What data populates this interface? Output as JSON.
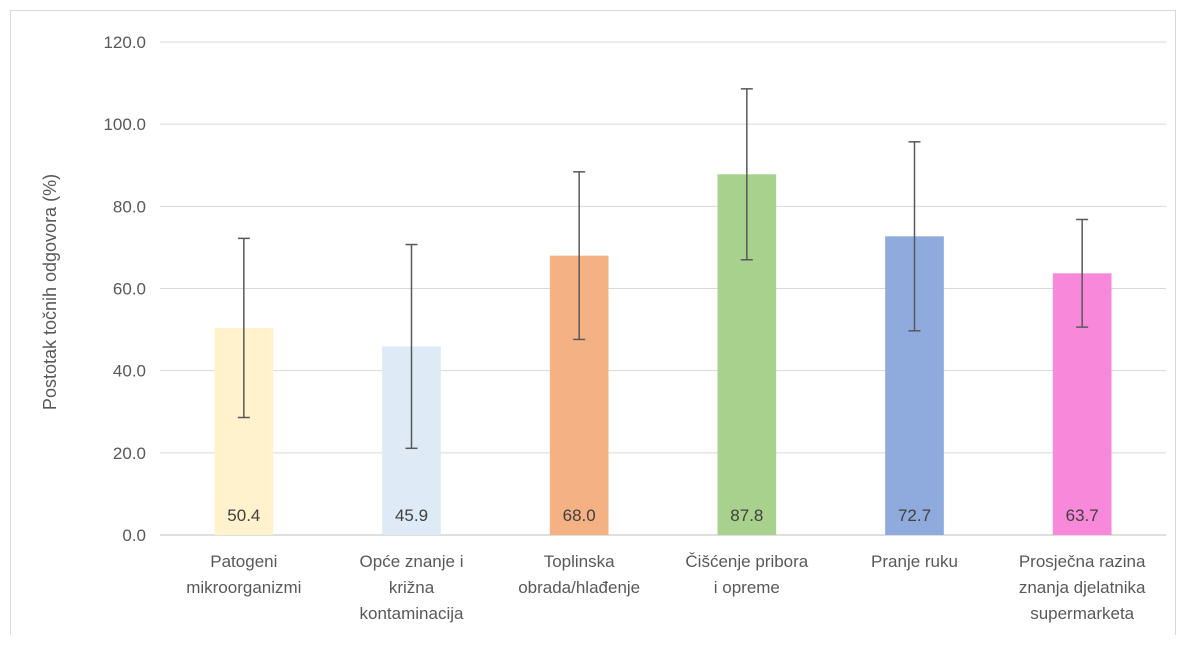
{
  "chart_data": {
    "type": "bar",
    "title": "",
    "xlabel": "",
    "ylabel": "Postotak točnih odgovora (%)",
    "ylim": [
      0,
      120
    ],
    "yticks": [
      "0.0",
      "20.0",
      "40.0",
      "60.0",
      "80.0",
      "100.0",
      "120.0"
    ],
    "grid": true,
    "categories": [
      [
        "Patogeni",
        "mikroorganizmi"
      ],
      [
        "Opće znanje i",
        "križna",
        "kontaminacija"
      ],
      [
        "Toplinska",
        "obrada/hlađenje"
      ],
      [
        "Čišćenje pribora",
        "i opreme"
      ],
      [
        "Pranje ruku"
      ],
      [
        "Prosječna razina",
        "znanja djelatnika",
        "supermarketa"
      ]
    ],
    "values": [
      50.4,
      45.9,
      68.0,
      87.8,
      72.7,
      63.7
    ],
    "data_labels": [
      "50.4",
      "45.9",
      "68.0",
      "87.8",
      "72.7",
      "63.7"
    ],
    "error_bars": [
      {
        "low": 28.6,
        "high": 72.2
      },
      {
        "low": 21.1,
        "high": 70.7
      },
      {
        "low": 47.6,
        "high": 88.4
      },
      {
        "low": 67.0,
        "high": 108.6
      },
      {
        "low": 49.7,
        "high": 95.7
      },
      {
        "low": 50.6,
        "high": 76.8
      }
    ],
    "colors": [
      "#fff2cc",
      "#deebf7",
      "#f4b183",
      "#a9d18e",
      "#8faadc",
      "#f888d9"
    ]
  }
}
